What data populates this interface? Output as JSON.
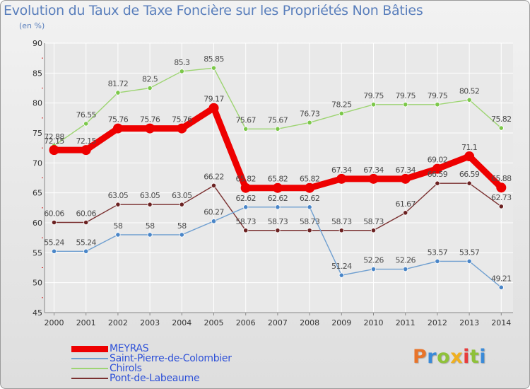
{
  "header": {
    "title": "Evolution du Taux de Taxe Foncière sur les Propriétés Non Bâties",
    "subtitle": "(en %)"
  },
  "logo": {
    "text": "Proxiti",
    "colors": [
      "#e8742a",
      "#3a8ad8",
      "#8fc13a",
      "#f0b020",
      "#e83c3c",
      "#8fc13a",
      "#3a8ad8"
    ]
  },
  "chart_data": {
    "type": "line",
    "title": "Evolution du Taux de Taxe Foncière sur les Propriétés Non Bâties",
    "ylabel": "(en %)",
    "xlabel": "",
    "x": [
      "2000",
      "2001",
      "2002",
      "2003",
      "2004",
      "2005",
      "2006",
      "2007",
      "2008",
      "2009",
      "2010",
      "2011",
      "2012",
      "2013",
      "2014"
    ],
    "ylim": [
      45,
      90
    ],
    "yticks": [
      45,
      50,
      55,
      60,
      65,
      70,
      75,
      80,
      85,
      90
    ],
    "ytick_labels": [
      "45",
      "50",
      "55",
      "60",
      "65",
      "70",
      "75",
      "80",
      "85",
      "90"
    ],
    "grid": true,
    "legend_position": "bottom-left",
    "series": [
      {
        "name": "Pont-de-Labeaume",
        "color": "#7a3030",
        "marker": "#6b2222",
        "values": [
          60.06,
          60.06,
          63.05,
          63.05,
          63.05,
          66.22,
          58.73,
          58.73,
          58.73,
          58.73,
          58.73,
          61.67,
          66.59,
          66.59,
          62.73
        ],
        "labels": [
          "60.06",
          "60.06",
          "63.05",
          "63.05",
          "63.05",
          "66.22",
          "58.73",
          "58.73",
          "58.73",
          "58.73",
          "58.73",
          "61.67",
          "66.59",
          "66.59",
          "62.73"
        ]
      },
      {
        "name": "Saint-Pierre-de-Colombier",
        "color": "#6f9fd0",
        "marker": "#4a86c8",
        "values": [
          55.24,
          55.24,
          58,
          58,
          58,
          60.27,
          62.62,
          62.62,
          62.62,
          51.24,
          52.26,
          52.26,
          53.57,
          53.57,
          49.21
        ],
        "labels": [
          "55.24",
          "55.24",
          "58",
          "58",
          "58",
          "60.27",
          "62.62",
          "62.62",
          "62.62",
          "51.24",
          "52.26",
          "52.26",
          "53.57",
          "53.57",
          "49.21"
        ]
      },
      {
        "name": "Chirols",
        "color": "#9dd472",
        "marker": "#7cc84a",
        "values": [
          72.88,
          76.55,
          81.72,
          82.5,
          85.3,
          85.85,
          75.67,
          75.67,
          76.73,
          78.25,
          79.75,
          79.75,
          79.75,
          80.52,
          75.82
        ],
        "labels": [
          "72.88",
          "76.55",
          "81.72",
          "82.5",
          "85.3",
          "85.85",
          "75.67",
          "75.67",
          "76.73",
          "78.25",
          "79.75",
          "79.75",
          "79.75",
          "80.52",
          "75.82"
        ]
      },
      {
        "name": "MEYRAS",
        "color": "#ee0000",
        "marker": "#ee0000",
        "values": [
          72.15,
          72.15,
          75.76,
          75.76,
          75.76,
          79.17,
          65.82,
          65.82,
          65.82,
          67.34,
          67.34,
          67.34,
          69.02,
          71.1,
          65.88
        ],
        "labels": [
          "72.15",
          "72.15",
          "75.76",
          "75.76",
          "75.76",
          "79.17",
          "65.82",
          "65.82",
          "65.82",
          "67.34",
          "67.34",
          "67.34",
          "69.02",
          "71.1",
          "65.88"
        ]
      }
    ],
    "legend": [
      "MEYRAS",
      "Saint-Pierre-de-Colombier",
      "Chirols",
      "Pont-de-Labeaume"
    ]
  }
}
